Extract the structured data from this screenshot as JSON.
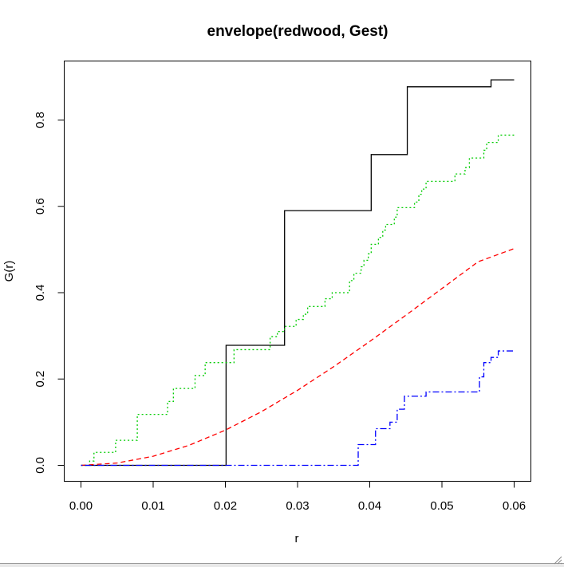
{
  "chart_data": {
    "type": "line",
    "title": "envelope(redwood, Gest)",
    "xlabel": "r",
    "ylabel": "G(r)",
    "xlim": [
      0.0,
      0.06
    ],
    "ylim": [
      0.0,
      0.9
    ],
    "x_ticks": [
      "0.00",
      "0.01",
      "0.02",
      "0.03",
      "0.04",
      "0.05",
      "0.06"
    ],
    "y_ticks": [
      "0.0",
      "0.2",
      "0.4",
      "0.6",
      "0.8"
    ],
    "grid": false,
    "legend": "none",
    "series": [
      {
        "color": "#000000",
        "line_style": "solid",
        "step": true,
        "points": [
          [
            0.0,
            0.0
          ],
          [
            0.0201,
            0.0
          ],
          [
            0.0201,
            0.278
          ],
          [
            0.0282,
            0.278
          ],
          [
            0.0282,
            0.59
          ],
          [
            0.0402,
            0.59
          ],
          [
            0.0402,
            0.72
          ],
          [
            0.0452,
            0.72
          ],
          [
            0.0452,
            0.877
          ],
          [
            0.0568,
            0.877
          ],
          [
            0.0568,
            0.893
          ],
          [
            0.06,
            0.893
          ]
        ]
      },
      {
        "color": "#00cc00",
        "line_style": "dotted",
        "step": true,
        "points": [
          [
            0.0,
            0.0
          ],
          [
            0.0012,
            0.0
          ],
          [
            0.0012,
            0.01
          ],
          [
            0.0018,
            0.01
          ],
          [
            0.0018,
            0.03
          ],
          [
            0.0048,
            0.03
          ],
          [
            0.0048,
            0.058
          ],
          [
            0.0078,
            0.058
          ],
          [
            0.0078,
            0.118
          ],
          [
            0.012,
            0.118
          ],
          [
            0.012,
            0.148
          ],
          [
            0.0128,
            0.148
          ],
          [
            0.0128,
            0.178
          ],
          [
            0.0158,
            0.178
          ],
          [
            0.0158,
            0.208
          ],
          [
            0.0172,
            0.208
          ],
          [
            0.0172,
            0.238
          ],
          [
            0.0212,
            0.238
          ],
          [
            0.0212,
            0.268
          ],
          [
            0.0262,
            0.268
          ],
          [
            0.0262,
            0.298
          ],
          [
            0.0272,
            0.298
          ],
          [
            0.0272,
            0.31
          ],
          [
            0.0282,
            0.31
          ],
          [
            0.0282,
            0.322
          ],
          [
            0.0298,
            0.322
          ],
          [
            0.0298,
            0.338
          ],
          [
            0.0308,
            0.338
          ],
          [
            0.0308,
            0.35
          ],
          [
            0.0314,
            0.35
          ],
          [
            0.0314,
            0.368
          ],
          [
            0.0338,
            0.368
          ],
          [
            0.0338,
            0.386
          ],
          [
            0.0348,
            0.386
          ],
          [
            0.0348,
            0.4
          ],
          [
            0.0372,
            0.4
          ],
          [
            0.0372,
            0.428
          ],
          [
            0.0378,
            0.428
          ],
          [
            0.0378,
            0.445
          ],
          [
            0.0388,
            0.445
          ],
          [
            0.0388,
            0.46
          ],
          [
            0.0392,
            0.46
          ],
          [
            0.0392,
            0.475
          ],
          [
            0.0398,
            0.475
          ],
          [
            0.0398,
            0.49
          ],
          [
            0.0402,
            0.49
          ],
          [
            0.0402,
            0.512
          ],
          [
            0.0412,
            0.512
          ],
          [
            0.0412,
            0.528
          ],
          [
            0.0418,
            0.528
          ],
          [
            0.0418,
            0.545
          ],
          [
            0.0422,
            0.545
          ],
          [
            0.0422,
            0.558
          ],
          [
            0.0434,
            0.558
          ],
          [
            0.0434,
            0.575
          ],
          [
            0.0438,
            0.575
          ],
          [
            0.0438,
            0.597
          ],
          [
            0.0462,
            0.597
          ],
          [
            0.0462,
            0.61
          ],
          [
            0.0468,
            0.61
          ],
          [
            0.0468,
            0.628
          ],
          [
            0.0472,
            0.628
          ],
          [
            0.0472,
            0.64
          ],
          [
            0.0478,
            0.64
          ],
          [
            0.0478,
            0.658
          ],
          [
            0.0518,
            0.658
          ],
          [
            0.0518,
            0.675
          ],
          [
            0.0532,
            0.675
          ],
          [
            0.0532,
            0.69
          ],
          [
            0.0538,
            0.69
          ],
          [
            0.0538,
            0.712
          ],
          [
            0.0558,
            0.712
          ],
          [
            0.0558,
            0.73
          ],
          [
            0.0562,
            0.73
          ],
          [
            0.0562,
            0.748
          ],
          [
            0.0578,
            0.748
          ],
          [
            0.0578,
            0.765
          ],
          [
            0.06,
            0.765
          ]
        ]
      },
      {
        "color": "#ff0000",
        "line_style": "dashed",
        "step": false,
        "points": [
          [
            0.0,
            0.0
          ],
          [
            0.005,
            0.0053
          ],
          [
            0.01,
            0.021
          ],
          [
            0.015,
            0.0466
          ],
          [
            0.02,
            0.0815
          ],
          [
            0.025,
            0.1243
          ],
          [
            0.03,
            0.1738
          ],
          [
            0.035,
            0.2285
          ],
          [
            0.04,
            0.287
          ],
          [
            0.045,
            0.3477
          ],
          [
            0.05,
            0.4096
          ],
          [
            0.055,
            0.4716
          ],
          [
            0.06,
            0.5021
          ]
        ]
      },
      {
        "color": "#0000ff",
        "line_style": "dotdash",
        "step": true,
        "points": [
          [
            0.0,
            0.0
          ],
          [
            0.0384,
            0.0
          ],
          [
            0.0384,
            0.048
          ],
          [
            0.0408,
            0.048
          ],
          [
            0.0408,
            0.085
          ],
          [
            0.0428,
            0.085
          ],
          [
            0.0428,
            0.1
          ],
          [
            0.0438,
            0.1
          ],
          [
            0.0438,
            0.13
          ],
          [
            0.0448,
            0.13
          ],
          [
            0.0448,
            0.16
          ],
          [
            0.0478,
            0.16
          ],
          [
            0.0478,
            0.17
          ],
          [
            0.0552,
            0.17
          ],
          [
            0.0552,
            0.205
          ],
          [
            0.0558,
            0.205
          ],
          [
            0.0558,
            0.238
          ],
          [
            0.0568,
            0.238
          ],
          [
            0.0568,
            0.25
          ],
          [
            0.0578,
            0.25
          ],
          [
            0.0578,
            0.265
          ],
          [
            0.06,
            0.265
          ]
        ]
      }
    ]
  }
}
